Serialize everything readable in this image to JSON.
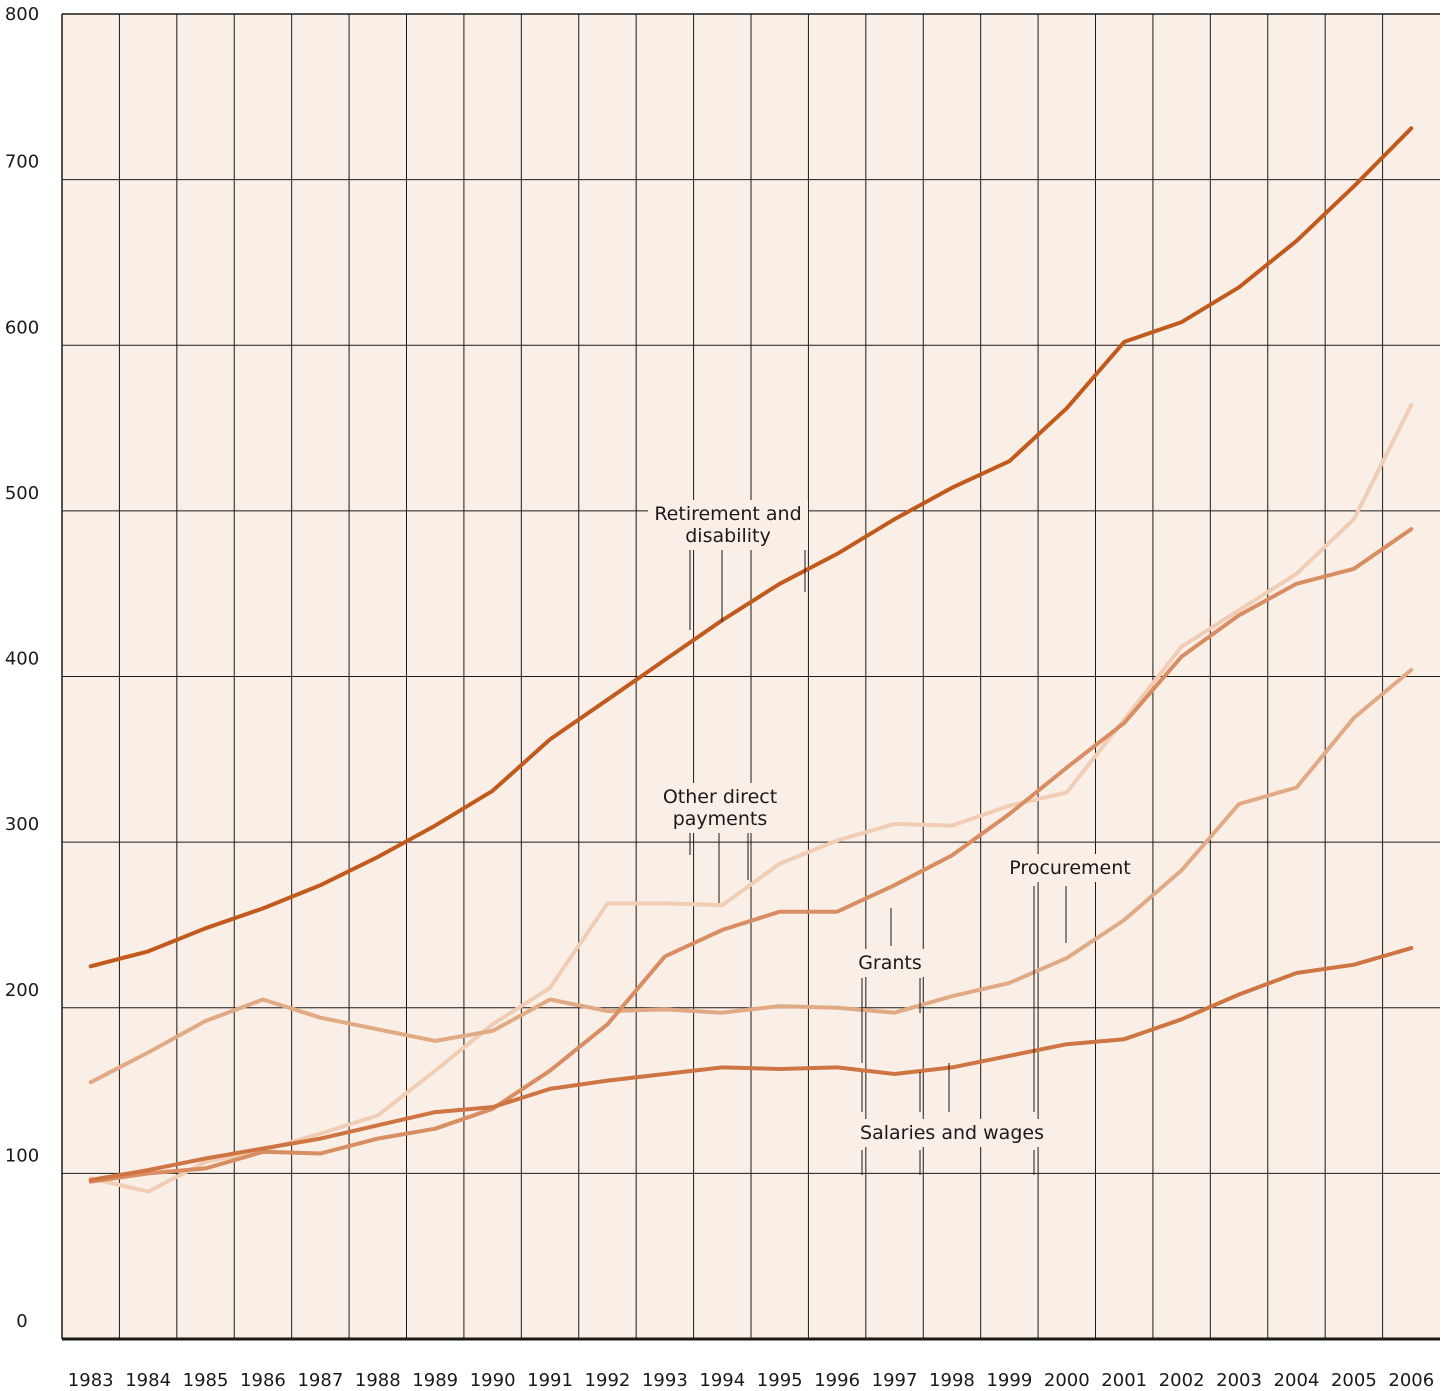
{
  "chart_data": {
    "type": "line",
    "title": "",
    "xlabel": "",
    "ylabel": "",
    "x": [
      1983,
      1984,
      1985,
      1986,
      1987,
      1988,
      1989,
      1990,
      1991,
      1992,
      1993,
      1994,
      1995,
      1996,
      1997,
      1998,
      1999,
      2000,
      2001,
      2002,
      2003,
      2004,
      2005,
      2006
    ],
    "x_tick_labels": [
      "1983",
      "1984",
      "1985",
      "1986",
      "1987",
      "1988",
      "1989",
      "1990",
      "1991",
      "1992",
      "1993",
      "1994",
      "1995",
      "1996",
      "1997",
      "1998",
      "1999",
      "2000",
      "2001",
      "2002",
      "2003",
      "2004",
      "2005",
      "2006"
    ],
    "y_ticks": [
      0,
      100,
      200,
      300,
      400,
      500,
      600,
      700,
      800
    ],
    "y_tick_labels": [
      "0",
      "100",
      "200",
      "300",
      "400",
      "500",
      "600",
      "700",
      "800"
    ],
    "ylim": [
      0,
      800
    ],
    "grid": true,
    "background_color": "#f9efe6",
    "series": [
      {
        "name": "Retirement and disability",
        "color": "#c25a1e",
        "values": [
          225,
          234,
          248,
          260,
          274,
          291,
          310,
          331,
          362,
          386,
          410,
          434,
          456,
          474,
          495,
          514,
          530,
          562,
          602,
          614,
          635,
          663,
          696,
          731
        ]
      },
      {
        "name": "Other direct payments",
        "color": "#f0cdb4",
        "values": [
          97,
          89,
          107,
          114,
          124,
          135,
          162,
          190,
          212,
          263,
          263,
          262,
          287,
          301,
          311,
          310,
          322,
          330,
          374,
          418,
          440,
          462,
          495,
          564
        ]
      },
      {
        "name": "Grants",
        "color": "#e2aa84",
        "values": [
          155,
          173,
          192,
          205,
          194,
          187,
          180,
          186,
          205,
          198,
          199,
          197,
          201,
          200,
          197,
          207,
          215,
          230,
          253,
          283,
          323,
          333,
          375,
          404
        ]
      },
      {
        "name": "Procurement",
        "color": "#d98d62",
        "values": [
          95,
          100,
          103,
          113,
          112,
          121,
          127,
          139,
          162,
          190,
          231,
          247,
          258,
          258,
          274,
          292,
          317,
          345,
          372,
          412,
          437,
          456,
          465,
          489
        ]
      },
      {
        "name": "Salaries and wages",
        "color": "#cf7443",
        "values": [
          96,
          102,
          109,
          115,
          121,
          129,
          137,
          140,
          151,
          156,
          160,
          164,
          163,
          164,
          160,
          164,
          171,
          178,
          181,
          193,
          208,
          221,
          226,
          236
        ]
      }
    ],
    "annotations": [
      {
        "lines": [
          "Retirement and",
          "disability"
        ]
      },
      {
        "lines": [
          "Other direct",
          "payments"
        ]
      },
      {
        "lines": [
          "Grants"
        ]
      },
      {
        "lines": [
          "Procurement"
        ]
      },
      {
        "lines": [
          "Salaries and wages"
        ]
      }
    ]
  }
}
